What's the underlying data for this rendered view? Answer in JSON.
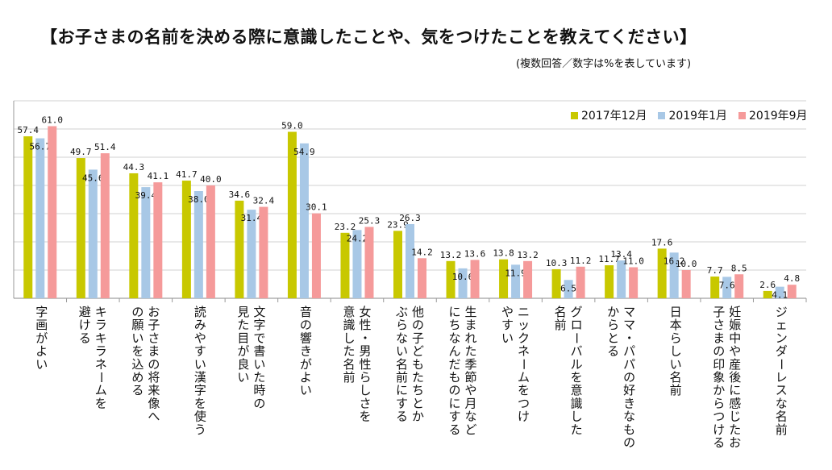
{
  "title": "【お子さまの名前を決める際に意識したことや、気をつけたことを教えてください】",
  "subtitle": "(複数回答／数字は%を表しています)",
  "colors": {
    "s2017": "#c8c800",
    "s2019a": "#a8c8e6",
    "s2019b": "#f59a9a"
  },
  "chart_data": {
    "type": "bar",
    "ylim": [
      0,
      70
    ],
    "grid": true,
    "legend_position": "top-right",
    "categories": [
      "字画がよい",
      "キラキラネームを避ける",
      "お子さまの将来像への願いを込める",
      "読みやすい漢字を使う",
      "文字で書いた時の見た目が良い",
      "音の響きがよい",
      "女性・男性らしさを意識した名前",
      "他の子どもたちとかぶらない名前にする",
      "生まれた季節や月などにちなんだものにする",
      "ニックネームをつけやすい",
      "グローバルを意識した名前",
      "ママ・パパの好きなものからとる",
      "日本らしい名前",
      "妊娠中や産後に感じたお子さまの印象からつける",
      "ジェンダーレスな名前"
    ],
    "category_lines": [
      [
        "字画がよい"
      ],
      [
        "キラキラネームを",
        "避ける"
      ],
      [
        "お子さまの将来像へ",
        "の願いを込める"
      ],
      [
        "読みやすい漢字を使う"
      ],
      [
        "文字で書いた時の",
        "見た目が良い"
      ],
      [
        "音の響きがよい"
      ],
      [
        "女性・男性らしさを",
        "意識した名前"
      ],
      [
        "他の子どもたちとか",
        "ぶらない名前にする"
      ],
      [
        "生まれた季節や月など",
        "にちなんだものにする"
      ],
      [
        "ニックネームをつけ",
        "やすい"
      ],
      [
        "グローバルを意識した",
        "名前"
      ],
      [
        "ママ・パパの好きなもの",
        "からとる"
      ],
      [
        "日本らしい名前"
      ],
      [
        "妊娠中や産後に感じたお",
        "子さまの印象からつける"
      ],
      [
        "ジェンダーレスな名前"
      ]
    ],
    "series": [
      {
        "name": "2017年12月",
        "values": [
          57.4,
          49.7,
          44.3,
          41.7,
          34.6,
          59.0,
          23.2,
          23.9,
          13.2,
          13.8,
          10.3,
          11.7,
          17.6,
          7.7,
          2.6
        ]
      },
      {
        "name": "2019年1月",
        "values": [
          56.7,
          45.6,
          39.4,
          38.0,
          31.4,
          54.9,
          24.2,
          26.3,
          10.6,
          11.9,
          6.5,
          13.4,
          16.2,
          7.6,
          4.1
        ]
      },
      {
        "name": "2019年9月",
        "values": [
          61.0,
          51.4,
          41.1,
          40.0,
          32.4,
          30.1,
          25.3,
          14.2,
          13.6,
          13.2,
          11.2,
          11.0,
          10.0,
          8.5,
          4.8
        ]
      }
    ]
  }
}
